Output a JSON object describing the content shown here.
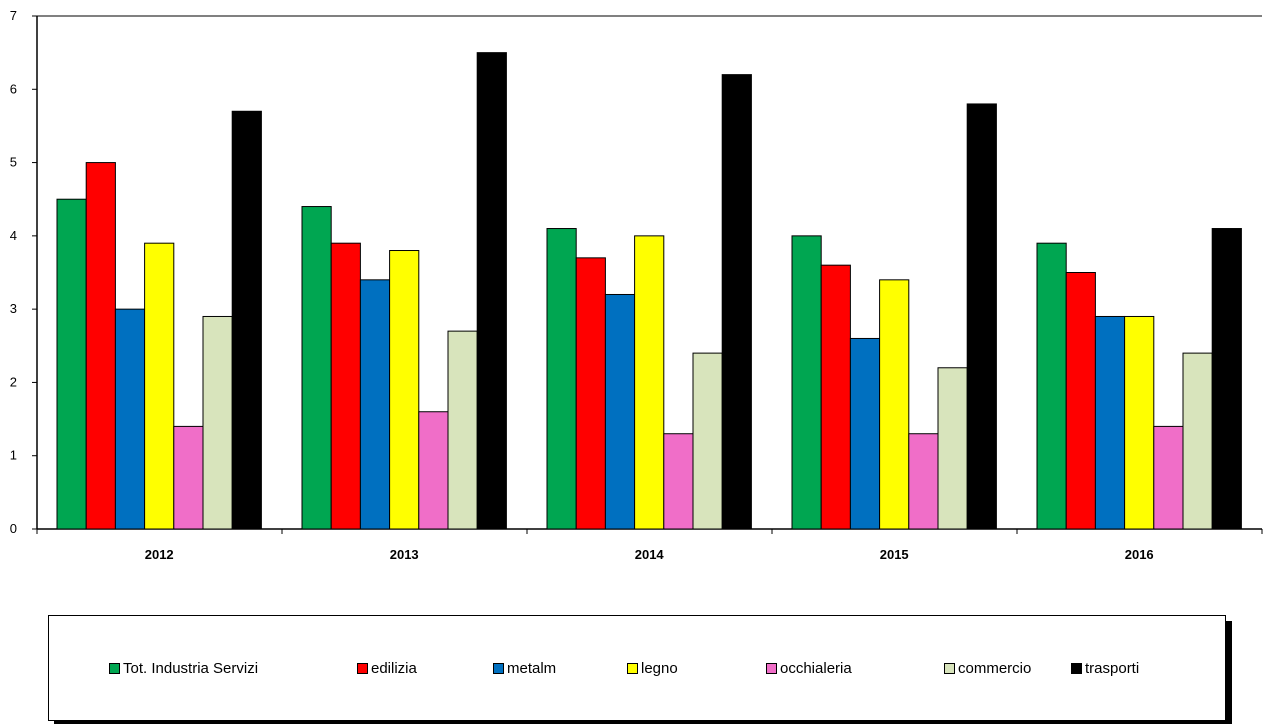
{
  "chart_data": {
    "type": "bar",
    "categories": [
      "2012",
      "2013",
      "2014",
      "2015",
      "2016"
    ],
    "ylim": [
      0,
      7
    ],
    "yticks": [
      0,
      1,
      2,
      3,
      4,
      5,
      6,
      7
    ],
    "grid": false,
    "legend_position": "bottom",
    "series": [
      {
        "name": "Tot. Industria Servizi",
        "color": "#00a651",
        "values": [
          4.5,
          4.4,
          4.1,
          4.0,
          3.9
        ]
      },
      {
        "name": "edilizia",
        "color": "#ff0000",
        "values": [
          5.0,
          3.9,
          3.7,
          3.6,
          3.5
        ]
      },
      {
        "name": "metalm",
        "color": "#0070c0",
        "values": [
          3.0,
          3.4,
          3.2,
          2.6,
          2.9
        ]
      },
      {
        "name": "legno",
        "color": "#ffff00",
        "values": [
          3.9,
          3.8,
          4.0,
          3.4,
          2.9
        ]
      },
      {
        "name": "occhialeria",
        "color": "#f06ec8",
        "values": [
          1.4,
          1.6,
          1.3,
          1.3,
          1.4
        ]
      },
      {
        "name": "commercio",
        "color": "#d8e4bc",
        "values": [
          2.9,
          2.7,
          2.4,
          2.2,
          2.4
        ]
      },
      {
        "name": "trasporti",
        "color": "#000000",
        "values": [
          5.7,
          6.5,
          6.2,
          5.8,
          4.1
        ]
      }
    ]
  }
}
